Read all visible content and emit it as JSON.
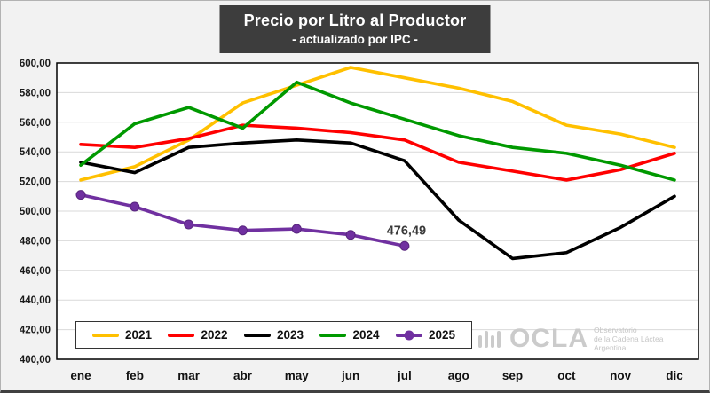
{
  "chart_data": {
    "type": "line",
    "title": "Precio por Litro al Productor",
    "subtitle": "- actualizado por IPC -",
    "categories": [
      "ene",
      "feb",
      "mar",
      "abr",
      "may",
      "jun",
      "jul",
      "ago",
      "sep",
      "oct",
      "nov",
      "dic"
    ],
    "ylim": [
      400,
      600
    ],
    "ytick_step": 20,
    "ytick_labels": [
      "400,00",
      "420,00",
      "440,00",
      "460,00",
      "480,00",
      "500,00",
      "520,00",
      "540,00",
      "560,00",
      "580,00",
      "600,00"
    ],
    "grid": true,
    "legend_position": "bottom-left-inside",
    "annotation": {
      "text": "476,49",
      "series": "2025",
      "x": "jul",
      "value": 476.49
    },
    "series": [
      {
        "name": "2021",
        "color": "#FFC000",
        "marker": false,
        "values": [
          521,
          530,
          548,
          573,
          585,
          597,
          590,
          583,
          574,
          558,
          552,
          543
        ]
      },
      {
        "name": "2022",
        "color": "#FF0000",
        "marker": false,
        "values": [
          545,
          543,
          549,
          558,
          556,
          553,
          548,
          533,
          527,
          521,
          528,
          539
        ]
      },
      {
        "name": "2023",
        "color": "#000000",
        "marker": false,
        "values": [
          533,
          526,
          543,
          546,
          548,
          546,
          534,
          494,
          468,
          472,
          489,
          510
        ]
      },
      {
        "name": "2024",
        "color": "#009900",
        "marker": false,
        "values": [
          531,
          559,
          570,
          556,
          587,
          573,
          562,
          551,
          543,
          539,
          531,
          521
        ]
      },
      {
        "name": "2025",
        "color": "#7030A0",
        "marker": true,
        "values": [
          511,
          503,
          491,
          487,
          488,
          484,
          476.49,
          null,
          null,
          null,
          null,
          null
        ]
      }
    ]
  },
  "watermark": {
    "brand": "OCLA",
    "line1": "Observatorio",
    "line2": "de la Cadena Láctea",
    "line3": "Argentina"
  }
}
